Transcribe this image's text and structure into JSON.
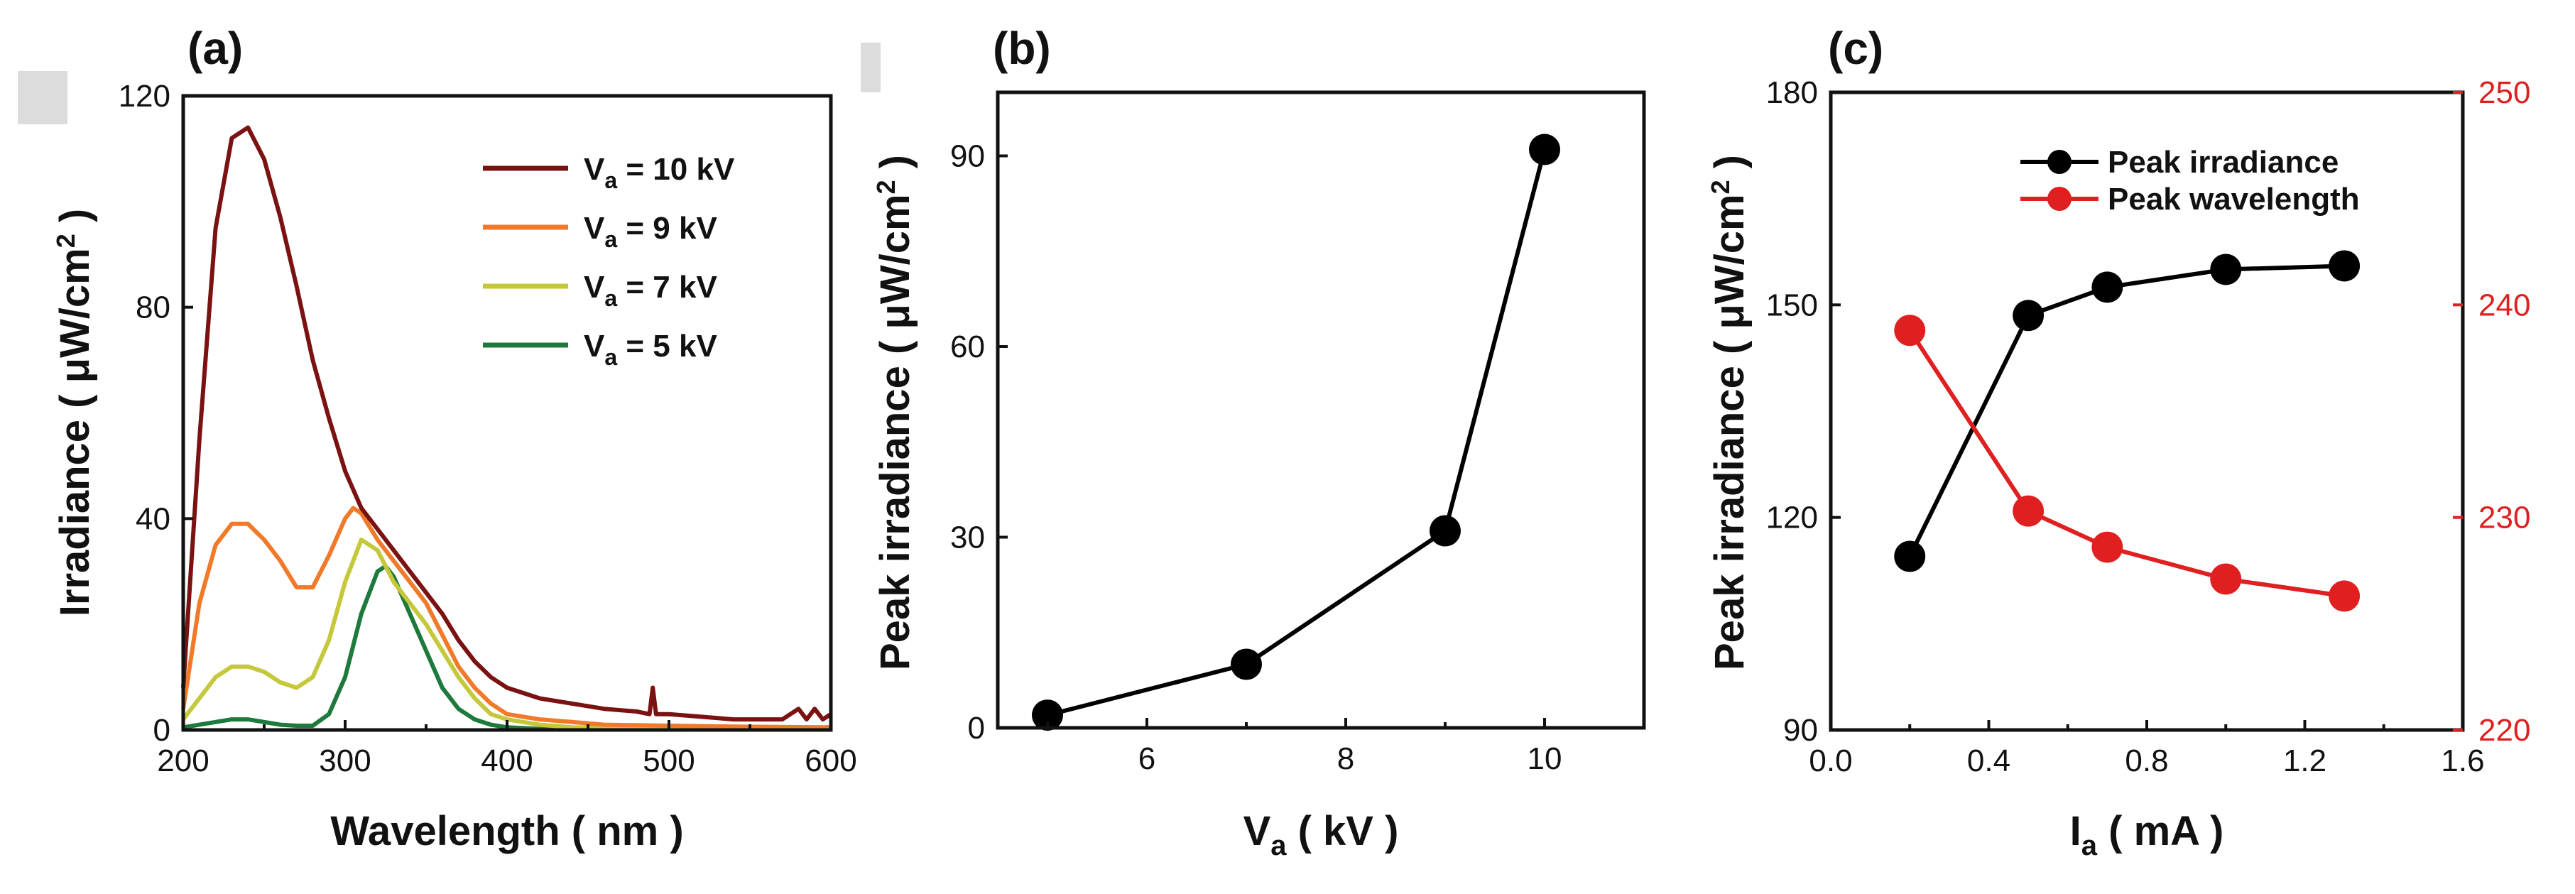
{
  "panel_labels": [
    "(a)",
    "(b)",
    "(c)"
  ],
  "chart_data": [
    {
      "type": "line",
      "panel": "(a)",
      "xlabel": "Wavelength ( nm )",
      "ylabel": "Irradiance ( μW/cm² )",
      "xlim": [
        200,
        600
      ],
      "ylim": [
        0,
        120
      ],
      "xticks": [
        200,
        300,
        400,
        500,
        600
      ],
      "yticks": [
        0,
        40,
        80,
        120
      ],
      "grid": false,
      "legend_position": "top-right",
      "series": [
        {
          "name": "V_a = 10 kV",
          "color": "#7a1212",
          "x": [
            200,
            210,
            220,
            230,
            240,
            250,
            260,
            270,
            280,
            290,
            300,
            310,
            320,
            330,
            340,
            350,
            360,
            370,
            380,
            390,
            400,
            420,
            440,
            460,
            480,
            488,
            490,
            492,
            500,
            520,
            540,
            560,
            570,
            580,
            585,
            590,
            595,
            600
          ],
          "y": [
            8,
            55,
            95,
            112,
            114,
            108,
            97,
            84,
            70,
            59,
            49,
            42,
            38,
            34,
            30,
            26,
            22,
            17,
            13,
            10,
            8,
            6,
            5,
            4,
            3.5,
            3,
            8,
            3,
            3,
            2.5,
            2,
            2,
            2,
            4,
            2,
            4,
            2,
            3
          ]
        },
        {
          "name": "V_a = 9 kV",
          "color": "#f07a2a",
          "x": [
            200,
            210,
            220,
            230,
            240,
            250,
            260,
            270,
            280,
            290,
            300,
            305,
            310,
            320,
            330,
            340,
            350,
            360,
            370,
            380,
            390,
            400,
            420,
            440,
            460,
            500,
            550,
            600
          ],
          "y": [
            4,
            24,
            35,
            39,
            39,
            36,
            32,
            27,
            27,
            33,
            40,
            42,
            41,
            36,
            32,
            28,
            24,
            18,
            12,
            8,
            5,
            3,
            2,
            1.5,
            1,
            0.8,
            0.6,
            0.5
          ]
        },
        {
          "name": "V_a = 7 kV",
          "color": "#c5c83a",
          "x": [
            200,
            210,
            220,
            230,
            240,
            250,
            260,
            270,
            280,
            290,
            300,
            310,
            320,
            330,
            340,
            350,
            360,
            370,
            380,
            390,
            400,
            420,
            440,
            500,
            600
          ],
          "y": [
            2,
            6,
            10,
            12,
            12,
            11,
            9,
            8,
            10,
            17,
            28,
            36,
            34,
            28,
            24,
            20,
            15,
            10,
            6,
            3,
            2,
            1,
            0.5,
            0.3,
            0.2
          ]
        },
        {
          "name": "V_a = 5 kV",
          "color": "#1e7a3c",
          "x": [
            200,
            210,
            220,
            230,
            240,
            250,
            260,
            270,
            280,
            290,
            300,
            310,
            320,
            325,
            330,
            340,
            350,
            360,
            370,
            380,
            390,
            400,
            420,
            500,
            600
          ],
          "y": [
            0.5,
            1,
            1.5,
            2,
            2,
            1.5,
            1,
            0.8,
            0.8,
            3,
            10,
            22,
            30,
            31,
            29,
            22,
            15,
            8,
            4,
            2,
            1,
            0.5,
            0.2,
            0.1,
            0.1
          ]
        }
      ]
    },
    {
      "type": "line",
      "panel": "(b)",
      "xlabel": "V_a ( kV )",
      "ylabel": "Peak irradiance ( μW/cm² )",
      "xlim": [
        4.5,
        11
      ],
      "ylim": [
        0,
        100
      ],
      "xticks": [
        6,
        8,
        10
      ],
      "yticks": [
        0,
        30,
        60,
        90
      ],
      "grid": false,
      "series": [
        {
          "name": "",
          "color": "#000000",
          "x": [
            5,
            7,
            9,
            10
          ],
          "y": [
            2,
            10,
            31,
            91
          ]
        }
      ]
    },
    {
      "type": "line",
      "panel": "(c)",
      "xlabel": "I_a ( mA )",
      "ylabel": "Peak irradiance ( μW/cm² )",
      "xlim": [
        0.0,
        1.6
      ],
      "ylim": [
        90,
        180
      ],
      "y2lim": [
        220,
        250
      ],
      "xticks": [
        "0.0",
        "0.4",
        "0.8",
        "1.2",
        "1.6"
      ],
      "yticks": [
        90,
        120,
        150,
        180
      ],
      "y2ticks": [
        220,
        230,
        240,
        250
      ],
      "grid": false,
      "legend_position": "top-right",
      "series": [
        {
          "name": "Peak irradiance",
          "axis": "left",
          "color": "#000000",
          "x": [
            0.2,
            0.5,
            0.7,
            1.0,
            1.3
          ],
          "y": [
            114.5,
            148.5,
            152.5,
            155,
            155.5
          ]
        },
        {
          "name": "Peak wavelength",
          "axis": "right",
          "color": "#e02020",
          "x": [
            0.2,
            0.5,
            0.7,
            1.0,
            1.3
          ],
          "y": [
            238.8,
            230.3,
            228.6,
            227.1,
            226.3
          ]
        }
      ]
    }
  ]
}
